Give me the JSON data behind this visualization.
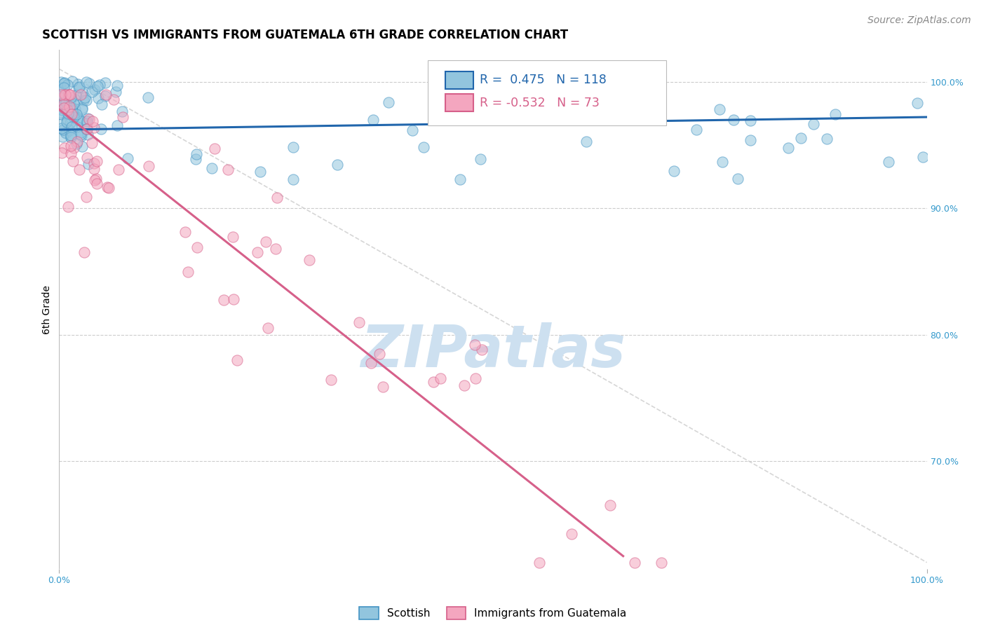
{
  "title": "SCOTTISH VS IMMIGRANTS FROM GUATEMALA 6TH GRADE CORRELATION CHART",
  "source": "Source: ZipAtlas.com",
  "ylabel": "6th Grade",
  "ytick_labels": [
    "100.0%",
    "90.0%",
    "80.0%",
    "70.0%"
  ],
  "ytick_positions": [
    1.0,
    0.9,
    0.8,
    0.7
  ],
  "legend_blue_label": "Scottish",
  "legend_pink_label": "Immigrants from Guatemala",
  "R_blue": 0.475,
  "N_blue": 118,
  "R_pink": -0.532,
  "N_pink": 73,
  "blue_color": "#92c5de",
  "blue_edge_color": "#4393c3",
  "blue_line_color": "#2166ac",
  "pink_color": "#f4a6bf",
  "pink_edge_color": "#d6608a",
  "pink_line_color": "#d6608a",
  "dashed_line_color": "#cccccc",
  "watermark_color": "#cde0f0",
  "background_color": "#ffffff",
  "title_fontsize": 12,
  "source_fontsize": 10,
  "axis_label_fontsize": 9,
  "xmin": 0.0,
  "xmax": 1.0,
  "ymin": 0.615,
  "ymax": 1.025,
  "blue_line_x0": 0.0,
  "blue_line_x1": 1.0,
  "blue_line_y0": 0.962,
  "blue_line_y1": 0.972,
  "pink_line_x0": 0.0,
  "pink_line_x1": 0.65,
  "pink_line_y0": 0.978,
  "pink_line_y1": 0.625,
  "dash_line_x0": 0.0,
  "dash_line_x1": 1.0,
  "dash_line_y0": 1.01,
  "dash_line_y1": 0.62
}
